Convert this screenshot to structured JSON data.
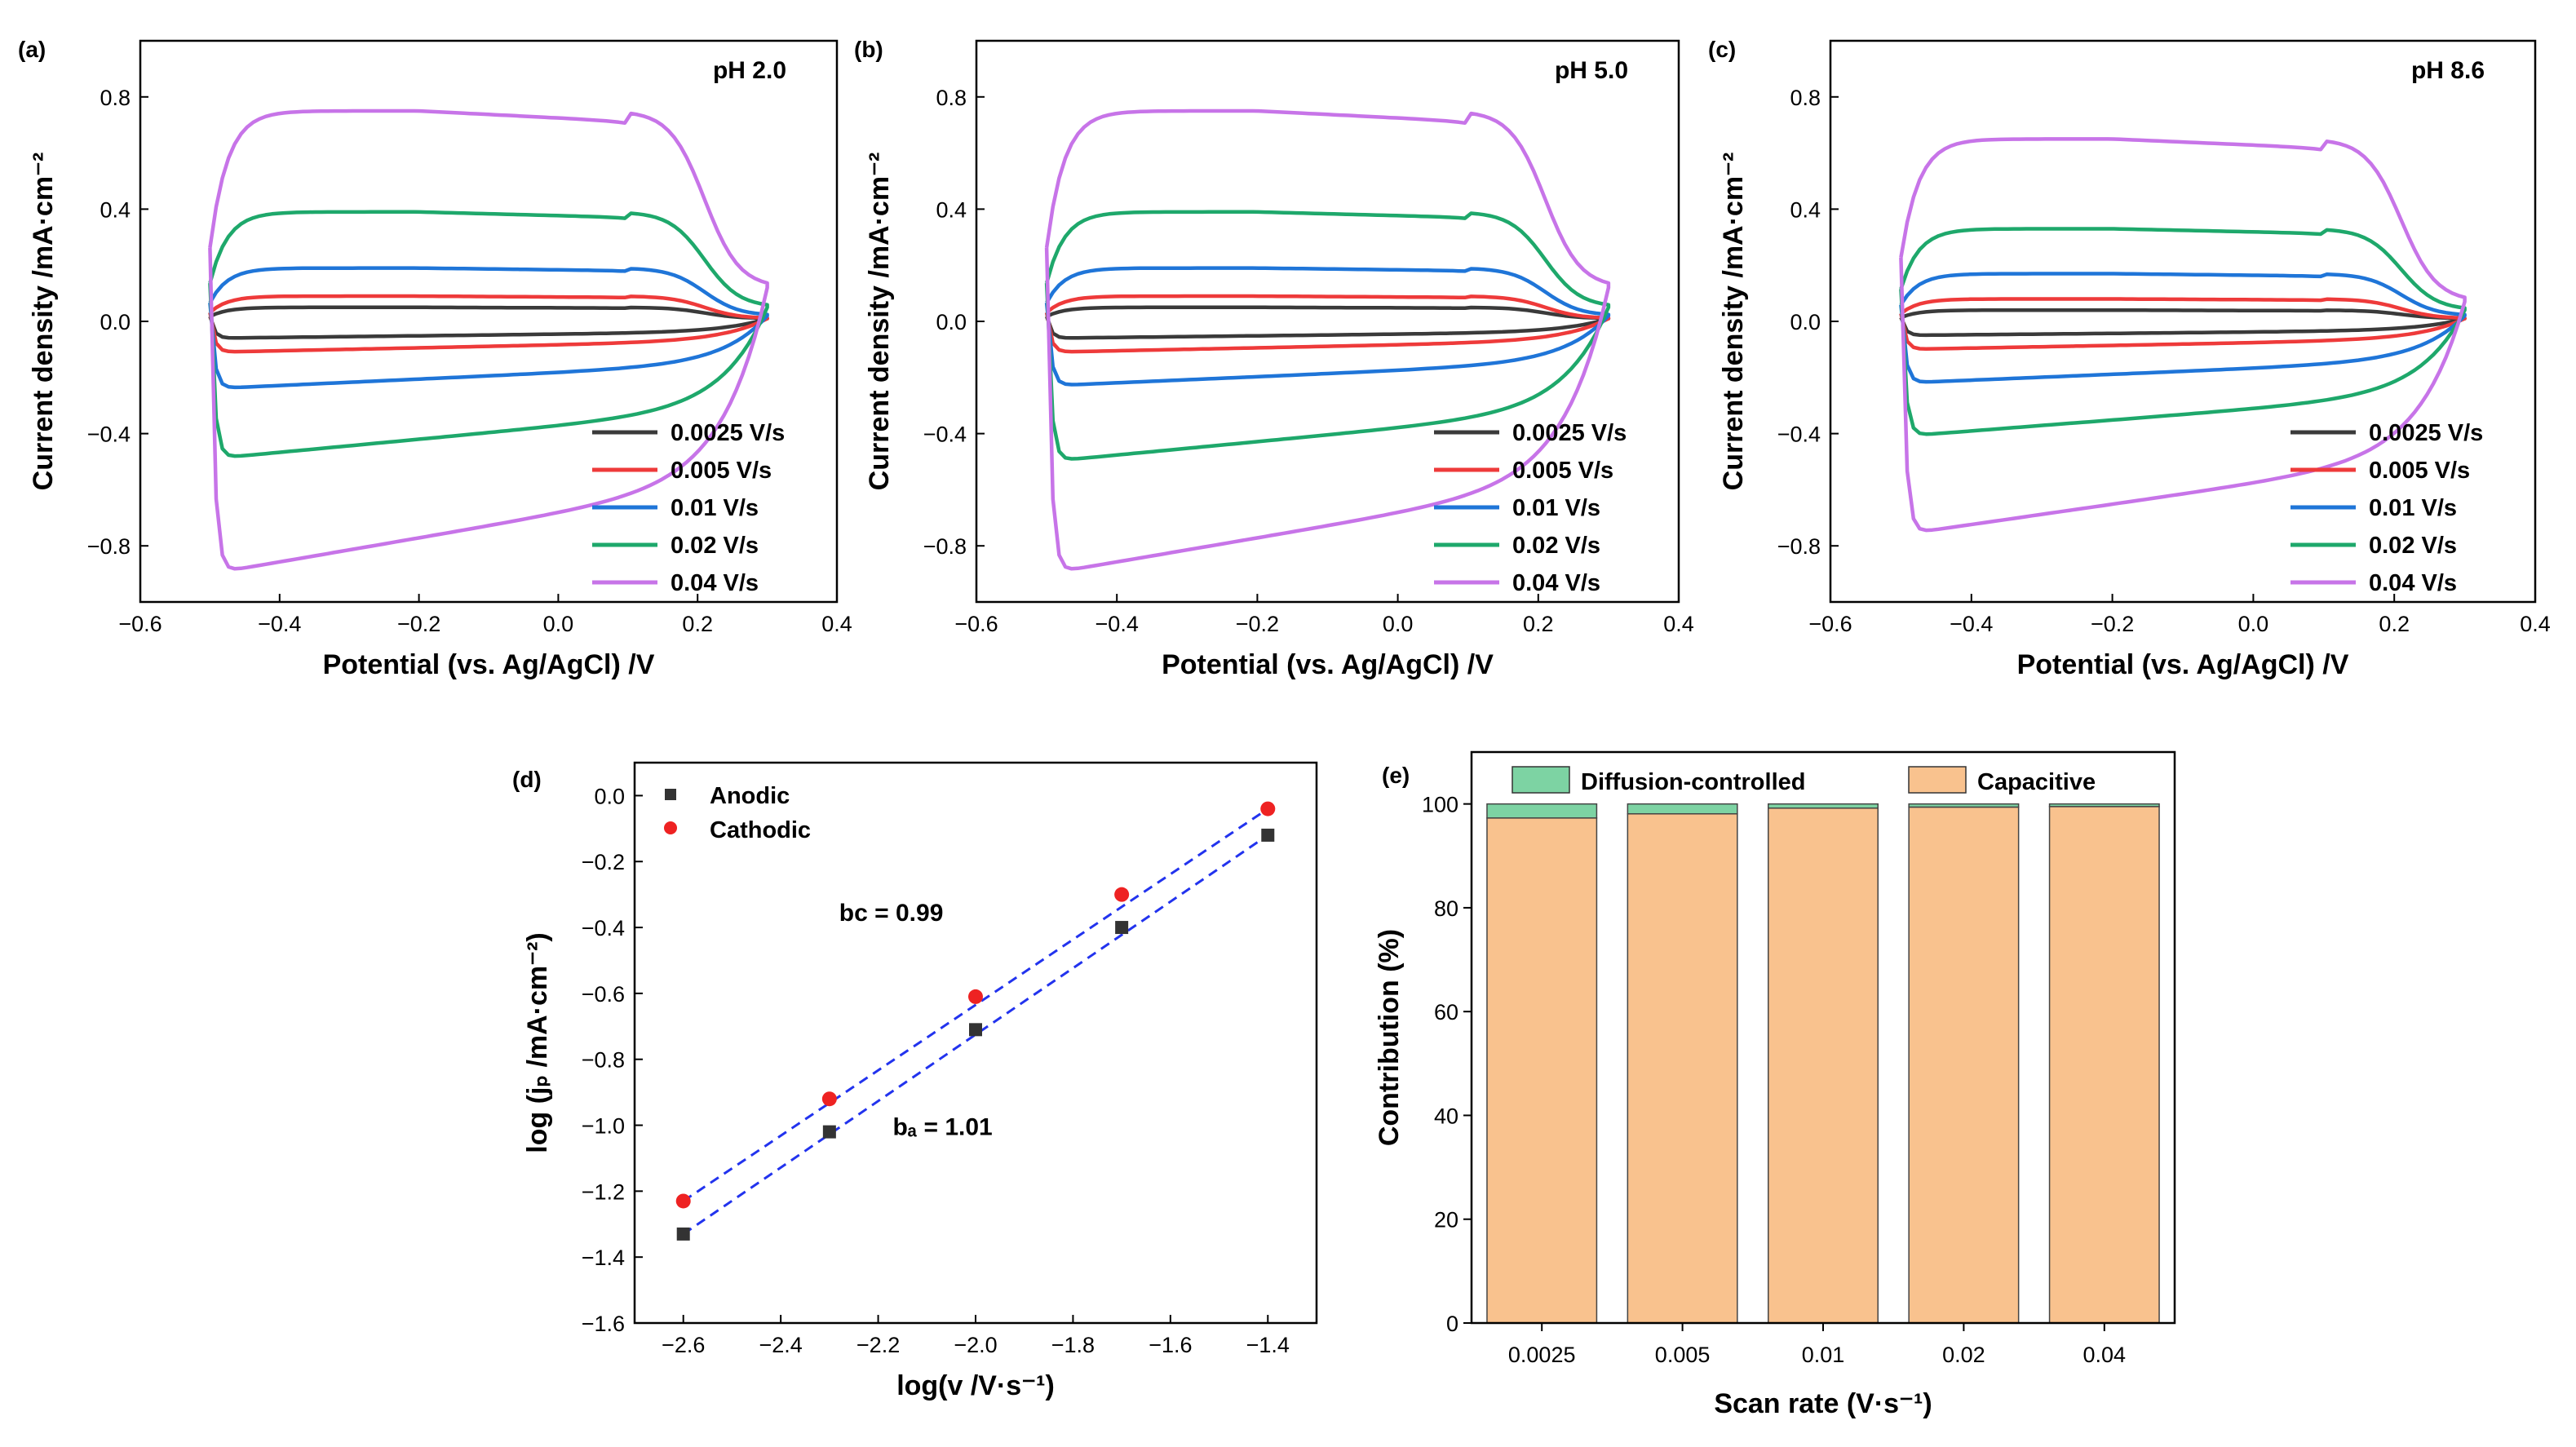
{
  "figure": {
    "panels": [
      "(a)",
      "(b)",
      "(c)",
      "(d)",
      "(e)"
    ]
  },
  "chart_data": [
    {
      "type": "line",
      "panel": "(a)",
      "annotation": "pH 2.0",
      "xlabel": "Potential (vs. Ag/AgCl) /V",
      "ylabel": "Current density /mA·cm⁻²",
      "xlim": [
        -0.6,
        0.4
      ],
      "ylim": [
        -1.0,
        1.0
      ],
      "xticks": [
        -0.6,
        -0.4,
        -0.2,
        0.0,
        0.2,
        0.4
      ],
      "yticks": [
        -0.8,
        -0.4,
        0.0,
        0.4,
        0.8
      ],
      "legend_position": "bottom-right",
      "series": [
        {
          "name": "0.0025 V/s",
          "color": "#3a3a3a",
          "plateau_anodic": 0.05,
          "plateau_cathodic": -0.06,
          "vertex_current_positive": 0.01
        },
        {
          "name": "0.005 V/s",
          "color": "#ee3a3a",
          "plateau_anodic": 0.09,
          "plateau_cathodic": -0.11,
          "vertex_current_positive": 0.01
        },
        {
          "name": "0.01 V/s",
          "color": "#1f75d8",
          "plateau_anodic": 0.19,
          "plateau_cathodic": -0.24,
          "vertex_current_positive": 0.02
        },
        {
          "name": "0.02 V/s",
          "color": "#1ea86b",
          "plateau_anodic": 0.39,
          "plateau_cathodic": -0.49,
          "vertex_current_positive": 0.05
        },
        {
          "name": "0.04 V/s",
          "color": "#c774e8",
          "plateau_anodic": 0.75,
          "plateau_cathodic": -0.9,
          "vertex_current_positive": 0.12
        }
      ]
    },
    {
      "type": "line",
      "panel": "(b)",
      "annotation": "pH 5.0",
      "xlabel": "Potential (vs. Ag/AgCl) /V",
      "ylabel": "Current density /mA·cm⁻²",
      "xlim": [
        -0.6,
        0.4
      ],
      "ylim": [
        -1.0,
        1.0
      ],
      "xticks": [
        -0.6,
        -0.4,
        -0.2,
        0.0,
        0.2,
        0.4
      ],
      "yticks": [
        -0.8,
        -0.4,
        0.0,
        0.4,
        0.8
      ],
      "legend_position": "bottom-right",
      "series": [
        {
          "name": "0.0025 V/s",
          "color": "#3a3a3a",
          "plateau_anodic": 0.05,
          "plateau_cathodic": -0.06,
          "vertex_current_positive": 0.01
        },
        {
          "name": "0.005 V/s",
          "color": "#ee3a3a",
          "plateau_anodic": 0.09,
          "plateau_cathodic": -0.11,
          "vertex_current_positive": 0.01
        },
        {
          "name": "0.01 V/s",
          "color": "#1f75d8",
          "plateau_anodic": 0.19,
          "plateau_cathodic": -0.23,
          "vertex_current_positive": 0.02
        },
        {
          "name": "0.02 V/s",
          "color": "#1ea86b",
          "plateau_anodic": 0.39,
          "plateau_cathodic": -0.5,
          "vertex_current_positive": 0.05
        },
        {
          "name": "0.04 V/s",
          "color": "#c774e8",
          "plateau_anodic": 0.75,
          "plateau_cathodic": -0.9,
          "vertex_current_positive": 0.12
        }
      ]
    },
    {
      "type": "line",
      "panel": "(c)",
      "annotation": "pH 8.6",
      "xlabel": "Potential (vs. Ag/AgCl) /V",
      "ylabel": "Current density /mA·cm⁻²",
      "xlim": [
        -0.6,
        0.4
      ],
      "ylim": [
        -1.0,
        1.0
      ],
      "xticks": [
        -0.6,
        -0.4,
        -0.2,
        0.0,
        0.2,
        0.4
      ],
      "yticks": [
        -0.8,
        -0.4,
        0.0,
        0.4,
        0.8
      ],
      "legend_position": "bottom-right",
      "series": [
        {
          "name": "0.0025 V/s",
          "color": "#3a3a3a",
          "plateau_anodic": 0.04,
          "plateau_cathodic": -0.05,
          "vertex_current_positive": 0.01
        },
        {
          "name": "0.005 V/s",
          "color": "#ee3a3a",
          "plateau_anodic": 0.08,
          "plateau_cathodic": -0.1,
          "vertex_current_positive": 0.01
        },
        {
          "name": "0.01 V/s",
          "color": "#1f75d8",
          "plateau_anodic": 0.17,
          "plateau_cathodic": -0.22,
          "vertex_current_positive": 0.02
        },
        {
          "name": "0.02 V/s",
          "color": "#1ea86b",
          "plateau_anodic": 0.33,
          "plateau_cathodic": -0.41,
          "vertex_current_positive": 0.04
        },
        {
          "name": "0.04 V/s",
          "color": "#c774e8",
          "plateau_anodic": 0.65,
          "plateau_cathodic": -0.76,
          "vertex_current_positive": 0.07
        }
      ]
    },
    {
      "type": "scatter",
      "panel": "(d)",
      "xlabel": "log(v /V·s⁻¹)",
      "ylabel": "log (jₚ /mA·cm⁻²)",
      "xlim": [
        -2.7,
        -1.3
      ],
      "ylim": [
        -1.6,
        0.1
      ],
      "xticks": [
        -2.6,
        -2.4,
        -2.2,
        -2.0,
        -1.8,
        -1.6,
        -1.4
      ],
      "yticks": [
        -1.6,
        -1.4,
        -1.2,
        -1.0,
        -0.8,
        -0.6,
        -0.4,
        -0.2,
        0.0
      ],
      "legend_position": "top-left",
      "annotations": {
        "bc": "bᴄ = 0.99",
        "ba": "bₐ = 1.01"
      },
      "series": [
        {
          "name": "Anodic",
          "color": "#333333",
          "marker": "square",
          "x": [
            -2.6,
            -2.3,
            -2.0,
            -1.7,
            -1.4
          ],
          "y": [
            -1.33,
            -1.02,
            -0.71,
            -0.4,
            -0.12
          ]
        },
        {
          "name": "Cathodic",
          "color": "#ee2222",
          "marker": "circle",
          "x": [
            -2.6,
            -2.3,
            -2.0,
            -1.7,
            -1.4
          ],
          "y": [
            -1.23,
            -0.92,
            -0.61,
            -0.3,
            -0.04
          ]
        }
      ],
      "fits": [
        {
          "series": "Anodic",
          "color": "#2233ee",
          "style": "dashed",
          "x": [
            -2.6,
            -1.4
          ],
          "y": [
            -1.33,
            -0.12
          ]
        },
        {
          "series": "Cathodic",
          "color": "#2233ee",
          "style": "dashed",
          "x": [
            -2.6,
            -1.4
          ],
          "y": [
            -1.23,
            -0.04
          ]
        }
      ]
    },
    {
      "type": "bar",
      "stacked": true,
      "panel": "(e)",
      "xlabel": "Scan rate (V·s⁻¹)",
      "ylabel": "Contribution (%)",
      "ylim": [
        0,
        110
      ],
      "yticks": [
        0,
        20,
        40,
        60,
        80,
        100
      ],
      "categories": [
        "0.0025",
        "0.005",
        "0.01",
        "0.02",
        "0.04"
      ],
      "legend_position": "top",
      "series": [
        {
          "name": "Capacitive",
          "color": "#f9c28e",
          "values": [
            97.3,
            98.1,
            99.2,
            99.4,
            99.5
          ]
        },
        {
          "name": "Diffusion-controlled",
          "color": "#7dd3a3",
          "values": [
            2.7,
            1.9,
            0.8,
            0.6,
            0.5
          ]
        }
      ]
    }
  ]
}
